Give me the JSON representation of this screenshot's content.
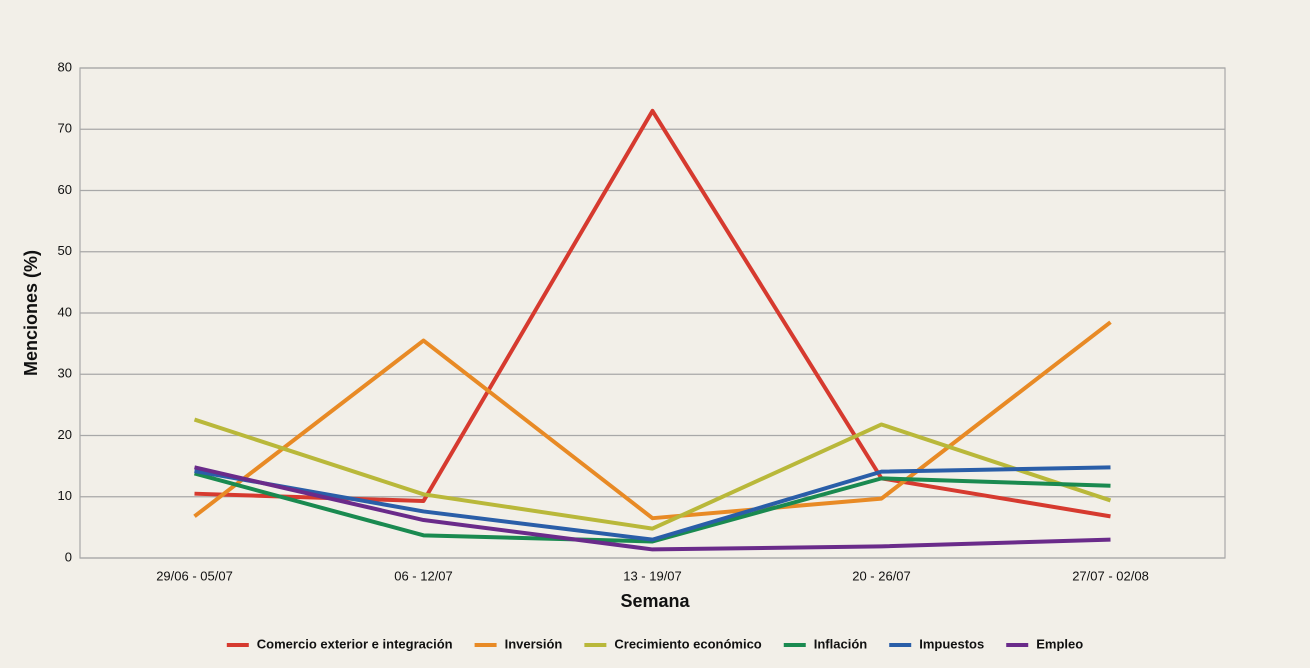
{
  "chart_data": {
    "type": "line",
    "xlabel": "Semana",
    "ylabel": "Menciones (%)",
    "categories": [
      "29/06 - 05/07",
      "06 - 12/07",
      "13 - 19/07",
      "20 - 26/07",
      "27/07 - 02/08"
    ],
    "series": [
      {
        "name": "Comercio exterior e integración",
        "color": "#d63a2f",
        "values": [
          10.5,
          9.3,
          73,
          13,
          6.8
        ]
      },
      {
        "name": "Inversión",
        "color": "#e88a25",
        "values": [
          6.8,
          35.5,
          6.5,
          9.7,
          38.5
        ]
      },
      {
        "name": "Crecimiento económico",
        "color": "#b9b83a",
        "values": [
          22.6,
          10.4,
          4.8,
          21.8,
          9.4
        ]
      },
      {
        "name": "Inflación",
        "color": "#1a8a50",
        "values": [
          13.8,
          3.7,
          2.7,
          13,
          11.8
        ]
      },
      {
        "name": "Impuestos",
        "color": "#2a5ea8",
        "values": [
          14.2,
          7.6,
          3.0,
          14.1,
          14.8
        ]
      },
      {
        "name": "Empleo",
        "color": "#6a2b8a",
        "values": [
          14.8,
          6.2,
          1.4,
          1.9,
          3.0
        ]
      }
    ],
    "ylim": [
      0,
      80
    ],
    "yticks": [
      0,
      10,
      20,
      30,
      40,
      50,
      60,
      70,
      80
    ],
    "grid": true,
    "legend": "bottom"
  }
}
